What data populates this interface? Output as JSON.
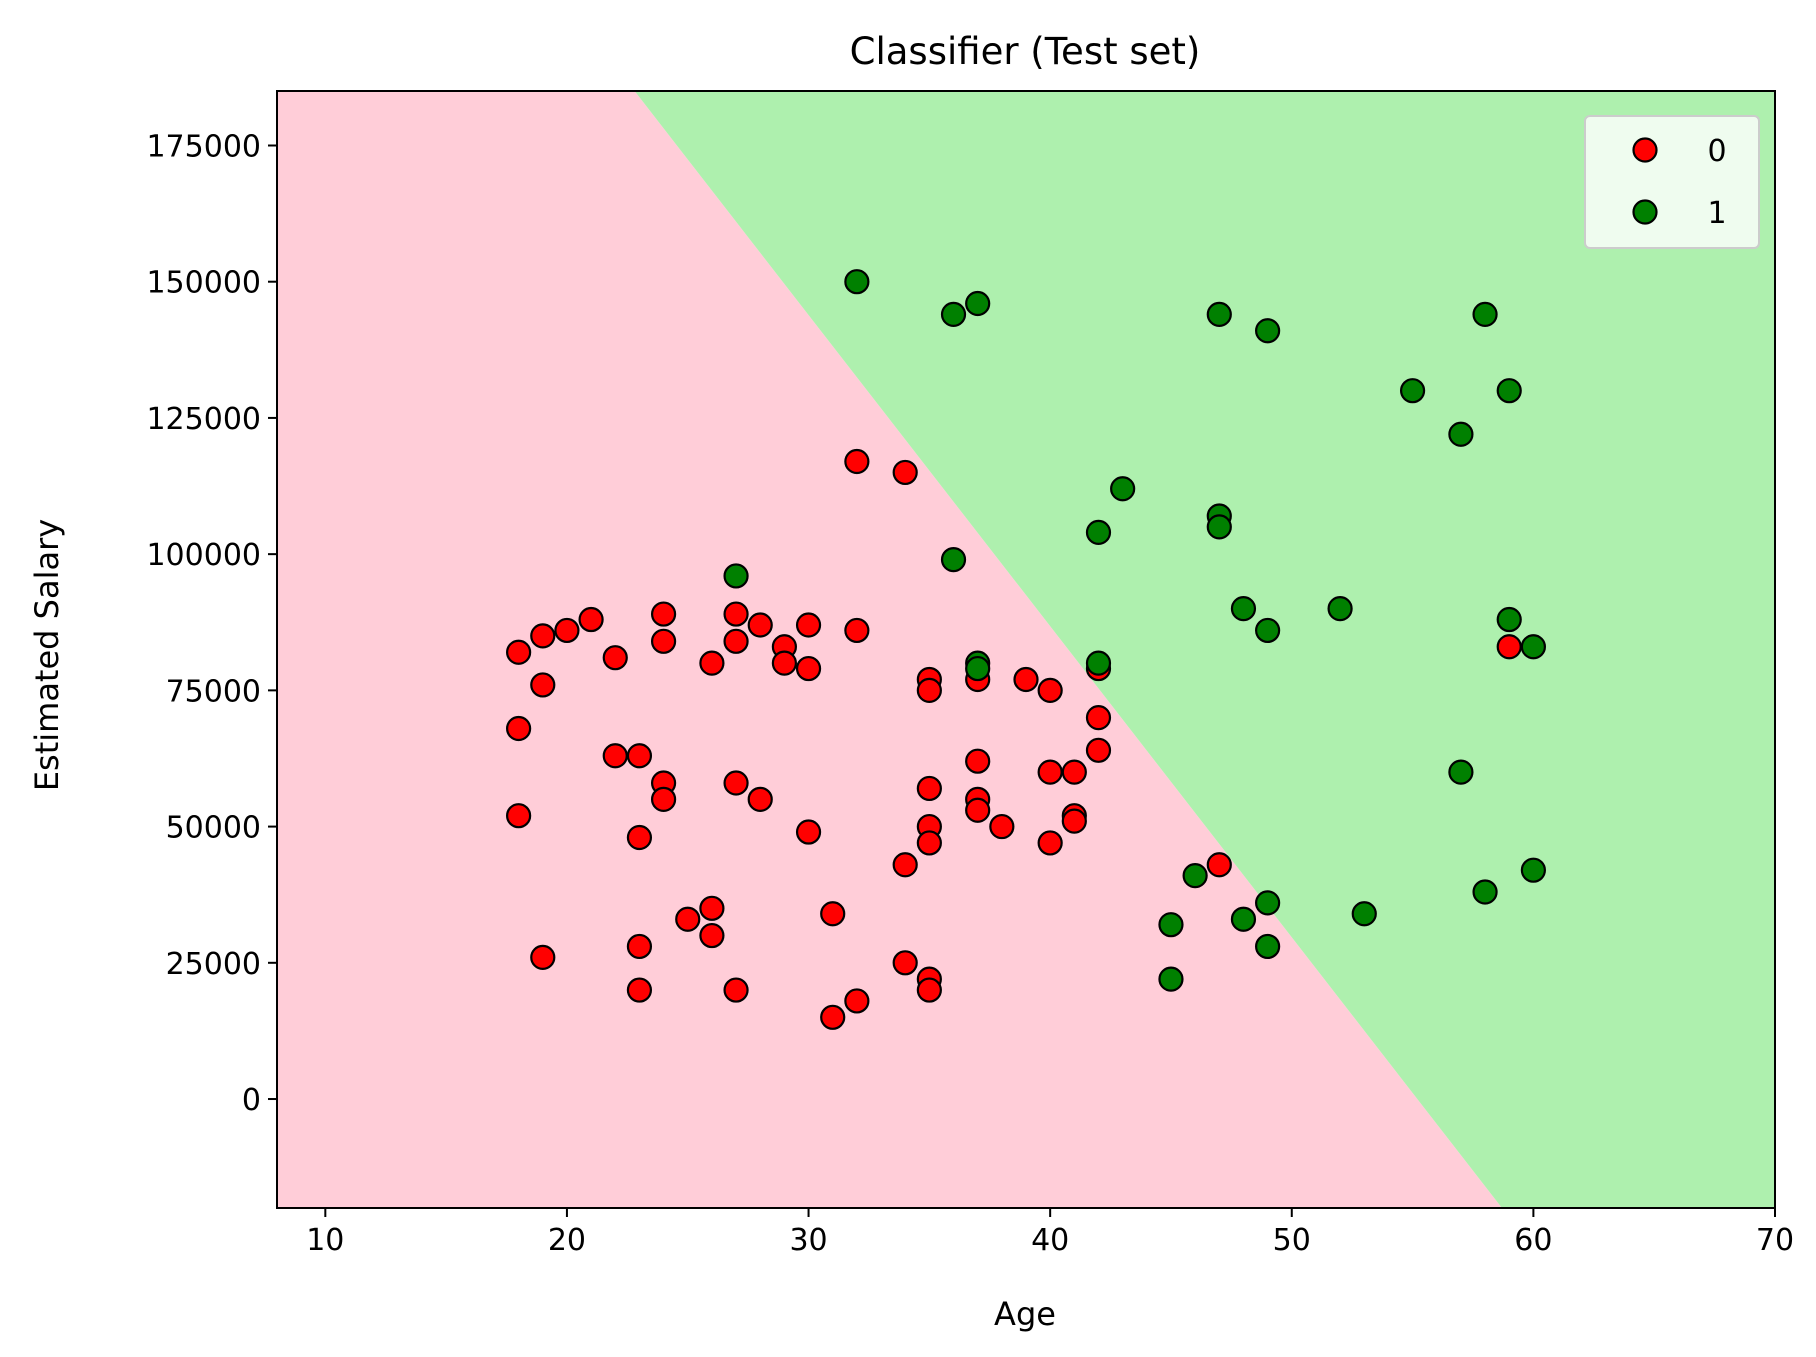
{
  "chart_data": {
    "type": "scatter",
    "title": "Classifier (Test set)",
    "xlabel": "Age",
    "ylabel": "Estimated Salary",
    "xlim": [
      8,
      70
    ],
    "ylim": [
      -20000,
      185000
    ],
    "xticks": [
      10,
      20,
      30,
      40,
      50,
      60,
      70
    ],
    "yticks": [
      0,
      25000,
      50000,
      75000,
      100000,
      125000,
      150000,
      175000
    ],
    "grid": false,
    "legend_position": "top-right",
    "background_regions": [
      {
        "class": "0",
        "color": "#ffcdd8",
        "side": "left of boundary"
      },
      {
        "class": "1",
        "color": "#aef0ae",
        "side": "right of boundary"
      }
    ],
    "decision_boundary": [
      [
        22.8,
        185000
      ],
      [
        58.7,
        -20000
      ]
    ],
    "series": [
      {
        "name": "0",
        "color": "#ff0000",
        "points": [
          [
            18,
            82000
          ],
          [
            19,
            85000
          ],
          [
            20,
            86000
          ],
          [
            21,
            88000
          ],
          [
            18,
            68000
          ],
          [
            19,
            76000
          ],
          [
            18,
            52000
          ],
          [
            19,
            26000
          ],
          [
            22,
            81000
          ],
          [
            22,
            63000
          ],
          [
            23,
            63000
          ],
          [
            23,
            48000
          ],
          [
            23,
            28000
          ],
          [
            23,
            20000
          ],
          [
            24,
            89000
          ],
          [
            24,
            84000
          ],
          [
            24,
            58000
          ],
          [
            24,
            55000
          ],
          [
            25,
            33000
          ],
          [
            26,
            35000
          ],
          [
            26,
            30000
          ],
          [
            26,
            80000
          ],
          [
            27,
            89000
          ],
          [
            27,
            84000
          ],
          [
            27,
            58000
          ],
          [
            27,
            20000
          ],
          [
            28,
            87000
          ],
          [
            28,
            55000
          ],
          [
            29,
            83000
          ],
          [
            29,
            80000
          ],
          [
            30,
            87000
          ],
          [
            30,
            79000
          ],
          [
            30,
            49000
          ],
          [
            31,
            34000
          ],
          [
            31,
            15000
          ],
          [
            32,
            117000
          ],
          [
            32,
            86000
          ],
          [
            32,
            18000
          ],
          [
            34,
            115000
          ],
          [
            34,
            43000
          ],
          [
            34,
            25000
          ],
          [
            35,
            77000
          ],
          [
            35,
            75000
          ],
          [
            35,
            57000
          ],
          [
            35,
            50000
          ],
          [
            35,
            47000
          ],
          [
            35,
            22000
          ],
          [
            35,
            20000
          ],
          [
            37,
            77000
          ],
          [
            37,
            62000
          ],
          [
            37,
            55000
          ],
          [
            37,
            53000
          ],
          [
            38,
            50000
          ],
          [
            39,
            77000
          ],
          [
            40,
            75000
          ],
          [
            40,
            60000
          ],
          [
            40,
            47000
          ],
          [
            41,
            60000
          ],
          [
            41,
            52000
          ],
          [
            41,
            51000
          ],
          [
            42,
            79000
          ],
          [
            42,
            70000
          ],
          [
            42,
            64000
          ],
          [
            47,
            43000
          ],
          [
            59,
            83000
          ]
        ]
      },
      {
        "name": "1",
        "color": "#008000",
        "points": [
          [
            32,
            150000
          ],
          [
            36,
            144000
          ],
          [
            37,
            146000
          ],
          [
            27,
            96000
          ],
          [
            36,
            99000
          ],
          [
            37,
            80000
          ],
          [
            37,
            79000
          ],
          [
            42,
            104000
          ],
          [
            42,
            80000
          ],
          [
            43,
            112000
          ],
          [
            47,
            144000
          ],
          [
            47,
            107000
          ],
          [
            47,
            105000
          ],
          [
            49,
            141000
          ],
          [
            48,
            90000
          ],
          [
            49,
            86000
          ],
          [
            52,
            90000
          ],
          [
            55,
            130000
          ],
          [
            57,
            122000
          ],
          [
            58,
            144000
          ],
          [
            59,
            130000
          ],
          [
            59,
            88000
          ],
          [
            60,
            83000
          ],
          [
            57,
            60000
          ],
          [
            58,
            38000
          ],
          [
            60,
            42000
          ],
          [
            53,
            34000
          ],
          [
            49,
            36000
          ],
          [
            48,
            33000
          ],
          [
            49,
            28000
          ],
          [
            45,
            32000
          ],
          [
            45,
            22000
          ],
          [
            46,
            41000
          ]
        ]
      }
    ]
  }
}
